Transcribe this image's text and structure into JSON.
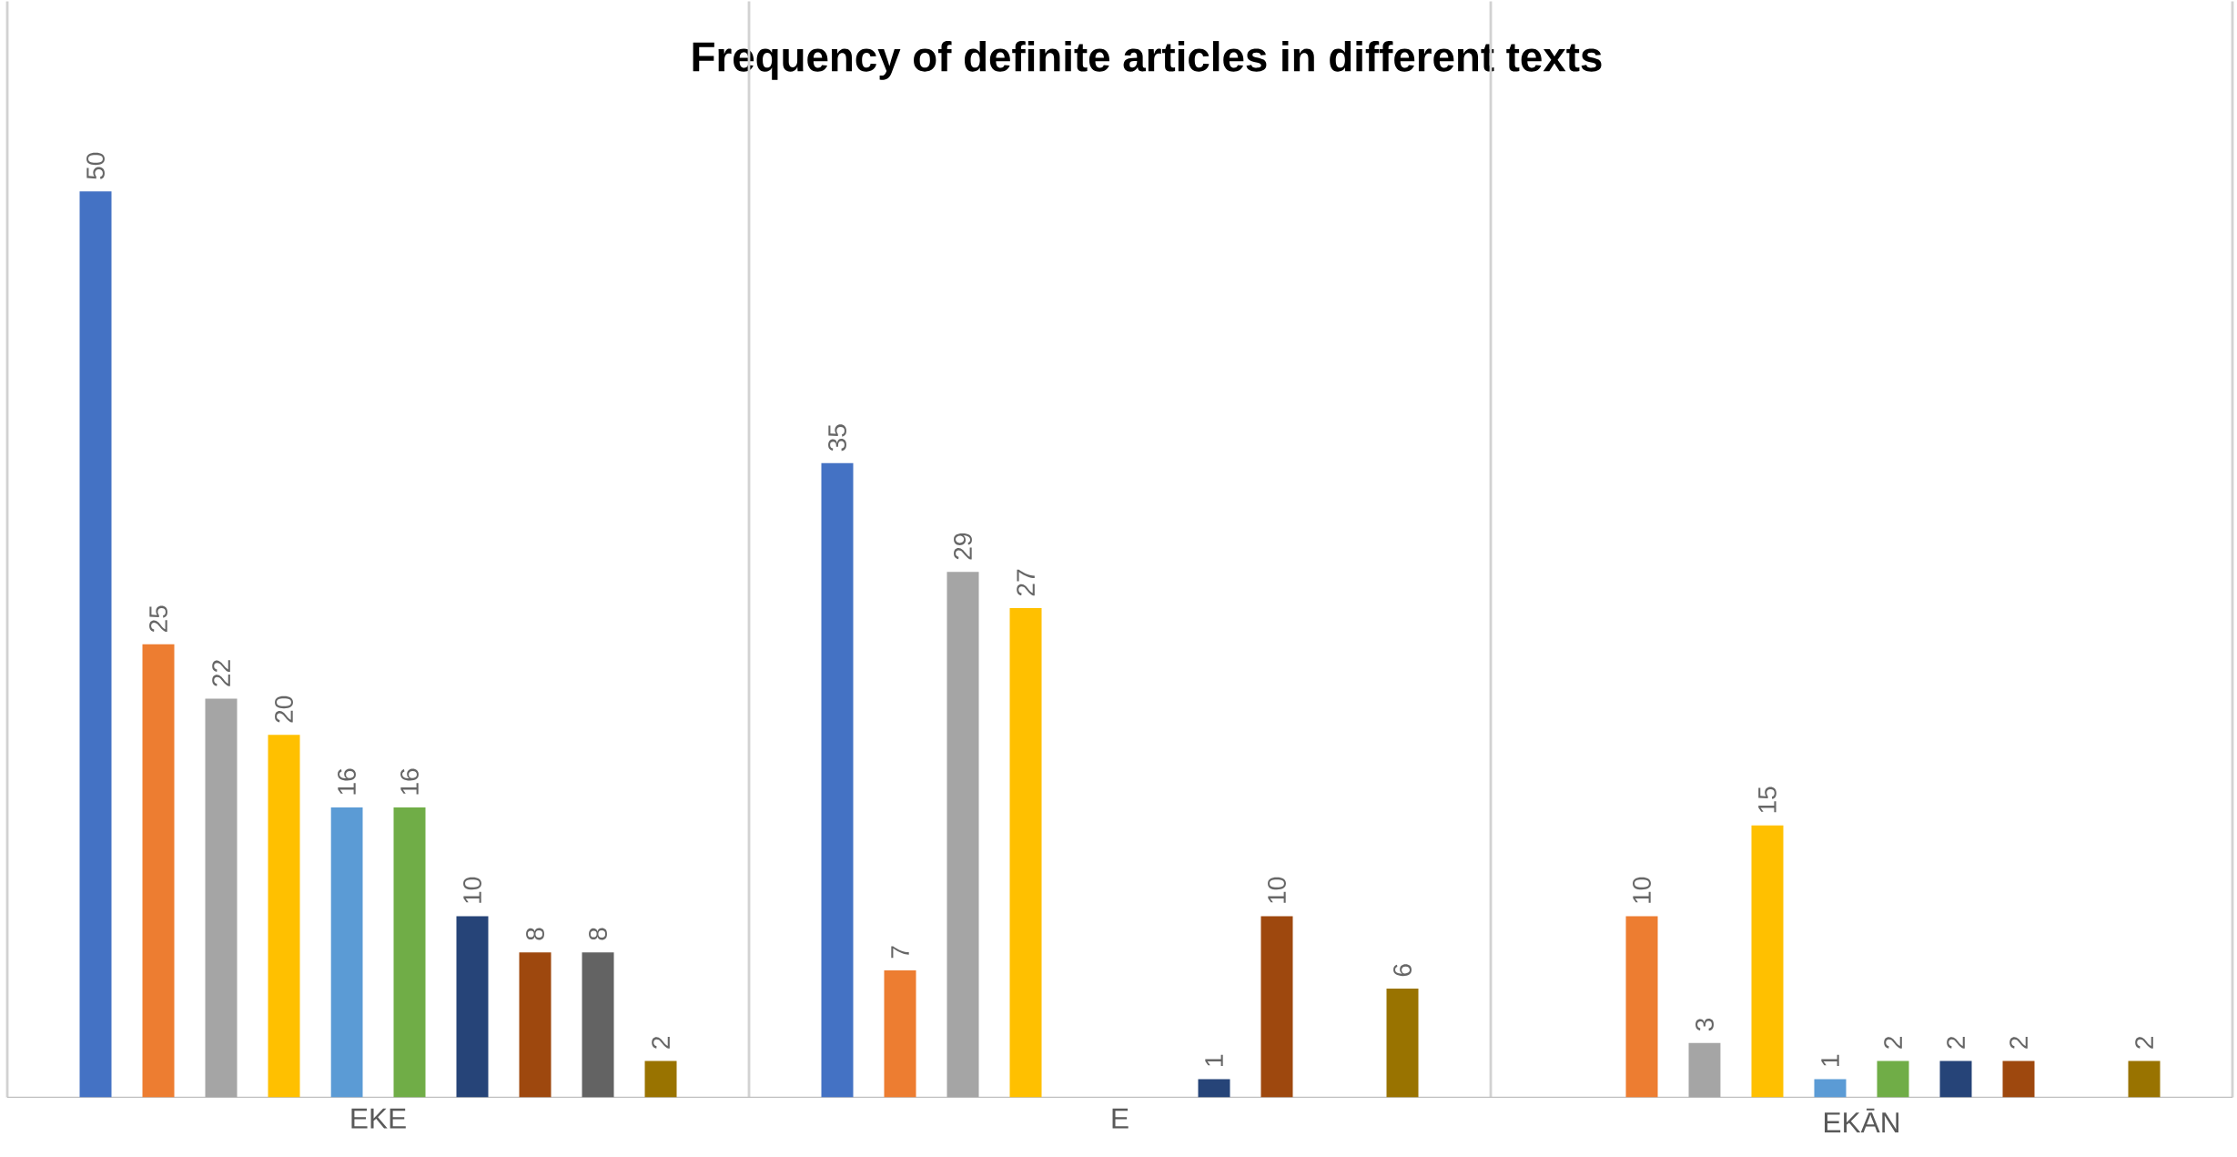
{
  "chart_data": {
    "type": "bar",
    "title": "Frequency of definite articles in different texts",
    "categories": [
      "EKE",
      "E",
      "EKĀN"
    ],
    "series": [
      {
        "color": "#4472c4",
        "values": [
          50,
          35,
          null
        ]
      },
      {
        "color": "#ed7d31",
        "values": [
          25,
          7,
          10
        ]
      },
      {
        "color": "#a5a5a5",
        "values": [
          22,
          29,
          3
        ]
      },
      {
        "color": "#ffc000",
        "values": [
          20,
          27,
          15
        ]
      },
      {
        "color": "#5b9bd5",
        "values": [
          16,
          null,
          1
        ]
      },
      {
        "color": "#70ad47",
        "values": [
          16,
          null,
          2
        ]
      },
      {
        "color": "#264478",
        "values": [
          10,
          1,
          2
        ]
      },
      {
        "color": "#9e480e",
        "values": [
          8,
          10,
          2
        ]
      },
      {
        "color": "#636363",
        "values": [
          8,
          null,
          null
        ]
      },
      {
        "color": "#997300",
        "values": [
          2,
          6,
          2
        ]
      }
    ],
    "data_labels": true,
    "grid": "x"
  }
}
